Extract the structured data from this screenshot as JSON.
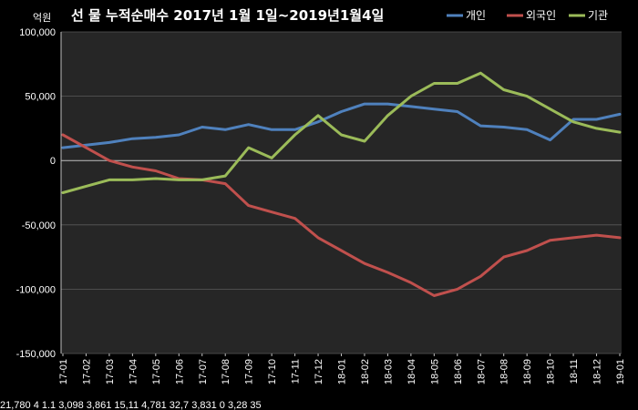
{
  "chart_data": {
    "type": "line",
    "title": "선 물 누적순매수 2017년 1월 1일~2019년1월4일",
    "unit_label": "억원",
    "x": [
      "17-01",
      "17-02",
      "17-03",
      "17-04",
      "17-05",
      "17-06",
      "17-07",
      "17-08",
      "17-09",
      "17-10",
      "17-11",
      "17-12",
      "18-01",
      "18-02",
      "18-03",
      "18-04",
      "18-05",
      "18-06",
      "18-07",
      "18-08",
      "18-09",
      "18-10",
      "18-11",
      "18-12",
      "19-01"
    ],
    "ylim": [
      -150000,
      100000
    ],
    "yticks": [
      100000,
      50000,
      0,
      -50000,
      -100000,
      -150000
    ],
    "ytick_labels": [
      "100,000",
      "50,000",
      "0",
      "-50,000",
      "-100,000",
      "-150,000"
    ],
    "legend_position": "top-right",
    "grid": true,
    "series": [
      {
        "name": "개인",
        "color": "#4f81bd",
        "values": [
          10000,
          12000,
          14000,
          17000,
          18000,
          20000,
          26000,
          24000,
          28000,
          24000,
          24000,
          30000,
          38000,
          44000,
          44000,
          42000,
          40000,
          38000,
          27000,
          26000,
          24000,
          16000,
          32000,
          32000,
          36000
        ]
      },
      {
        "name": "외국인",
        "color": "#c0504d",
        "values": [
          20000,
          10000,
          0,
          -5000,
          -8000,
          -14000,
          -15000,
          -18000,
          -35000,
          -40000,
          -45000,
          -60000,
          -70000,
          -80000,
          -87000,
          -95000,
          -105000,
          -100000,
          -90000,
          -75000,
          -70000,
          -62000,
          -60000,
          -58000,
          -60000
        ]
      },
      {
        "name": "기관",
        "color": "#9bbb59",
        "values": [
          -25000,
          -20000,
          -15000,
          -15000,
          -14000,
          -15000,
          -15000,
          -12000,
          10000,
          2000,
          20000,
          35000,
          20000,
          15000,
          35000,
          50000,
          60000,
          60000,
          68000,
          55000,
          50000,
          40000,
          30000,
          25000,
          22000
        ]
      }
    ]
  },
  "footer_text": "21,780   4   1.1   3,098   3,861   15,11   4,781     32,7   3,831     0     3,28     35"
}
